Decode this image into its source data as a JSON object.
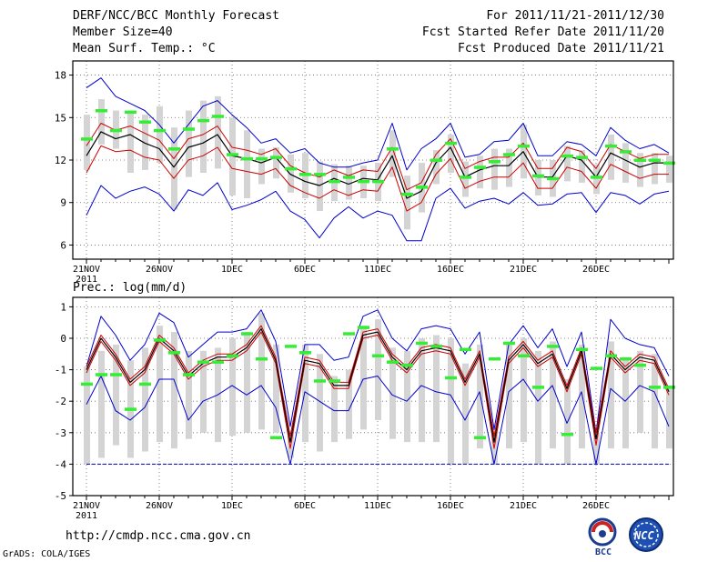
{
  "header": {
    "title": "DERF/NCC/BCC Monthly Forecast",
    "member_size": "Member Size=40",
    "variable": "Mean Surf. Temp.: °C",
    "period": "For 2011/11/21-2011/12/30",
    "started": "Fcst Started Refer Date 2011/11/20",
    "produced": "Fcst Produced Date 2011/11/21"
  },
  "footer": {
    "url": "http://cmdp.ncc.cma.gov.cn",
    "credit": "GrADS: COLA/IGES",
    "logo_bcc": "BCC",
    "logo_ncc": "NCC"
  },
  "colors": {
    "blue": "#0000cc",
    "red": "#cc0000",
    "black": "#000000",
    "green": "#33ee33",
    "box": "#d4d4d4",
    "grid": "#666666"
  },
  "chart_data": [
    {
      "type": "line",
      "title": "Mean Surf. Temp.: °C",
      "ylim": [
        5,
        19
      ],
      "yticks": [
        6,
        9,
        12,
        15,
        18
      ],
      "x_start_day": 0,
      "x_end_day": 40,
      "xticks": [
        {
          "day": 0,
          "label": "21NOV",
          "sub": "2011"
        },
        {
          "day": 5,
          "label": "26NOV"
        },
        {
          "day": 10,
          "label": "1DEC"
        },
        {
          "day": 15,
          "label": "6DEC"
        },
        {
          "day": 20,
          "label": "11DEC"
        },
        {
          "day": 25,
          "label": "16DEC"
        },
        {
          "day": 30,
          "label": "21DEC"
        },
        {
          "day": 35,
          "label": "26DEC"
        }
      ],
      "max": [
        17.1,
        17.8,
        16.5,
        16.0,
        15.5,
        14.5,
        13.2,
        14.5,
        15.8,
        16.2,
        15.2,
        14.3,
        13.2,
        13.5,
        12.5,
        12.8,
        11.8,
        11.5,
        11.5,
        11.8,
        12.0,
        14.6,
        11.3,
        12.8,
        13.5,
        14.6,
        12.2,
        12.4,
        13.3,
        13.4,
        14.6,
        12.3,
        12.3,
        13.3,
        13.1,
        12.3,
        14.3,
        13.4,
        12.8,
        13.1,
        12.5
      ],
      "min": [
        8.1,
        10.2,
        9.3,
        9.8,
        10.1,
        9.6,
        8.4,
        9.9,
        9.5,
        10.4,
        8.5,
        8.8,
        9.2,
        9.8,
        8.4,
        7.8,
        6.5,
        7.9,
        8.7,
        7.9,
        8.4,
        8.1,
        6.3,
        6.3,
        9.3,
        10.0,
        8.6,
        9.1,
        9.3,
        8.9,
        9.7,
        8.8,
        8.9,
        9.6,
        9.7,
        8.3,
        9.7,
        9.5,
        8.9,
        9.6,
        9.8
      ],
      "mean": [
        12.3,
        14.0,
        13.5,
        13.8,
        13.2,
        12.8,
        11.5,
        12.9,
        13.2,
        13.8,
        12.3,
        12.1,
        11.8,
        12.2,
        11.0,
        10.5,
        10.2,
        10.7,
        10.3,
        10.7,
        10.6,
        12.3,
        9.3,
        9.8,
        11.8,
        12.9,
        10.8,
        11.3,
        11.6,
        11.6,
        12.6,
        10.8,
        10.8,
        12.3,
        12.0,
        10.8,
        12.5,
        12.0,
        11.5,
        11.8,
        11.8
      ],
      "upper_red": [
        13.0,
        14.6,
        14.1,
        14.4,
        13.9,
        13.4,
        12.1,
        13.5,
        13.8,
        14.4,
        12.9,
        12.7,
        12.4,
        12.8,
        11.6,
        11.1,
        10.8,
        11.3,
        10.9,
        11.3,
        11.2,
        12.9,
        9.9,
        10.4,
        12.4,
        13.5,
        11.4,
        11.9,
        12.2,
        12.2,
        13.2,
        11.4,
        11.4,
        12.9,
        12.6,
        11.4,
        13.1,
        12.6,
        12.1,
        12.4,
        12.4
      ],
      "lower_red": [
        11.1,
        13.0,
        12.6,
        12.7,
        12.2,
        12.0,
        10.7,
        12.0,
        12.3,
        12.9,
        11.4,
        11.2,
        11.0,
        11.4,
        10.2,
        9.7,
        9.3,
        9.9,
        9.5,
        9.9,
        9.8,
        11.5,
        8.4,
        9.0,
        11.0,
        12.1,
        10.0,
        10.5,
        10.8,
        10.8,
        11.8,
        10.0,
        10.0,
        11.5,
        11.2,
        10.0,
        11.7,
        11.2,
        10.7,
        11.0,
        11.0
      ],
      "box_high": [
        15.2,
        16.3,
        15.5,
        15.5,
        15.2,
        15.8,
        14.3,
        15.5,
        16.2,
        16.5,
        15.0,
        14.1,
        12.8,
        12.9,
        12.4,
        12.5,
        11.9,
        11.7,
        11.6,
        11.6,
        11.8,
        14.1,
        10.9,
        11.8,
        12.7,
        13.8,
        11.9,
        12.3,
        12.8,
        12.8,
        14.5,
        12.0,
        12.0,
        13.0,
        12.7,
        11.7,
        13.8,
        13.2,
        12.5,
        12.5,
        12.3
      ],
      "box_low": [
        11.3,
        13.1,
        12.8,
        11.1,
        11.3,
        11.8,
        8.5,
        10.8,
        11.1,
        11.4,
        9.5,
        9.3,
        10.3,
        10.7,
        9.7,
        9.3,
        8.4,
        9.1,
        9.2,
        9.3,
        9.1,
        10.8,
        7.1,
        8.3,
        10.3,
        11.1,
        9.4,
        10.0,
        9.9,
        10.1,
        10.7,
        9.5,
        9.4,
        10.5,
        10.4,
        9.6,
        10.6,
        10.4,
        10.1,
        10.3,
        10.4
      ],
      "green_obs": [
        13.5,
        15.5,
        14.1,
        15.4,
        14.7,
        14.1,
        12.8,
        14.2,
        14.8,
        15.1,
        12.4,
        12.1,
        12.1,
        12.2,
        11.4,
        11.0,
        11.0,
        10.5,
        10.8,
        10.5,
        10.5,
        12.8,
        9.6,
        10.1,
        12.0,
        13.2,
        10.8,
        11.5,
        11.9,
        12.4,
        13.0,
        10.9,
        10.7,
        12.3,
        12.2,
        10.8,
        13.0,
        12.6,
        12.0,
        12.0,
        11.8
      ]
    },
    {
      "type": "line",
      "title": "Prec.: log(mm/d)",
      "ylim": [
        -5,
        1.3
      ],
      "yticks": [
        -5,
        -4,
        -3,
        -2,
        -1,
        0,
        1
      ],
      "x_start_day": 0,
      "x_end_day": 40,
      "xticks": [
        {
          "day": 0,
          "label": "21NOV",
          "sub": "2011"
        },
        {
          "day": 5,
          "label": "26NOV"
        },
        {
          "day": 10,
          "label": "1DEC"
        },
        {
          "day": 15,
          "label": "6DEC"
        },
        {
          "day": 20,
          "label": "11DEC"
        },
        {
          "day": 25,
          "label": "16DEC"
        },
        {
          "day": 30,
          "label": "21DEC"
        },
        {
          "day": 35,
          "label": "26DEC"
        }
      ],
      "baseline": -4,
      "max": [
        -0.9,
        0.7,
        0.1,
        -0.7,
        -0.2,
        0.8,
        0.5,
        -0.6,
        -0.2,
        0.2,
        0.2,
        0.3,
        0.9,
        -0.1,
        -2.8,
        -0.2,
        -0.2,
        -0.7,
        -0.6,
        0.7,
        0.9,
        0.0,
        -0.4,
        0.3,
        0.4,
        0.3,
        -0.5,
        0.2,
        -2.9,
        -0.2,
        0.4,
        -0.3,
        0.3,
        -0.9,
        0.2,
        -3.0,
        0.6,
        0.0,
        -0.2,
        -0.3,
        -1.2
      ],
      "min": [
        -2.1,
        -1.2,
        -2.3,
        -2.6,
        -2.2,
        -1.3,
        -1.3,
        -2.6,
        -2.0,
        -1.8,
        -1.5,
        -1.8,
        -1.5,
        -2.2,
        -4.0,
        -1.7,
        -2.0,
        -2.3,
        -2.3,
        -1.3,
        -1.2,
        -1.8,
        -2.0,
        -1.5,
        -1.7,
        -1.8,
        -2.6,
        -1.7,
        -4.0,
        -1.7,
        -1.3,
        -2.0,
        -1.5,
        -2.7,
        -1.7,
        -4.0,
        -1.6,
        -2.0,
        -1.5,
        -1.7,
        -2.8
      ],
      "mean": [
        -1.0,
        0.0,
        -0.6,
        -1.4,
        -1.0,
        0.0,
        -0.4,
        -1.2,
        -0.8,
        -0.6,
        -0.6,
        -0.3,
        0.3,
        -0.7,
        -3.3,
        -0.7,
        -0.8,
        -1.5,
        -1.5,
        0.1,
        0.2,
        -0.6,
        -1.0,
        -0.4,
        -0.3,
        -0.4,
        -1.4,
        -0.5,
        -3.3,
        -0.7,
        -0.2,
        -0.8,
        -0.5,
        -1.6,
        -0.4,
        -3.2,
        -0.5,
        -1.0,
        -0.6,
        -0.7,
        -1.7
      ],
      "upper_red": [
        -0.9,
        0.1,
        -0.5,
        -1.3,
        -0.9,
        0.1,
        -0.3,
        -1.1,
        -0.7,
        -0.5,
        -0.5,
        -0.2,
        0.4,
        -0.6,
        -3.1,
        -0.6,
        -0.7,
        -1.4,
        -1.4,
        0.2,
        0.3,
        -0.5,
        -0.9,
        -0.3,
        -0.2,
        -0.3,
        -1.3,
        -0.4,
        -3.1,
        -0.6,
        -0.1,
        -0.7,
        -0.4,
        -1.5,
        -0.3,
        -3.0,
        -0.4,
        -0.9,
        -0.5,
        -0.6,
        -1.6
      ],
      "lower_red": [
        -1.1,
        -0.1,
        -0.7,
        -1.5,
        -1.1,
        -0.1,
        -0.5,
        -1.3,
        -0.9,
        -0.7,
        -0.7,
        -0.4,
        0.2,
        -0.8,
        -3.5,
        -0.8,
        -0.9,
        -1.6,
        -1.6,
        0.0,
        0.1,
        -0.7,
        -1.1,
        -0.5,
        -0.4,
        -0.5,
        -1.5,
        -0.6,
        -3.5,
        -0.8,
        -0.3,
        -0.9,
        -0.6,
        -1.7,
        -0.5,
        -3.4,
        -0.6,
        -1.1,
        -0.7,
        -0.8,
        -1.8
      ],
      "box_high": [
        -0.9,
        -0.4,
        -0.2,
        -0.7,
        -0.3,
        0.4,
        0.2,
        -0.4,
        -0.4,
        -0.3,
        0.0,
        0.2,
        0.8,
        -0.2,
        -3.0,
        -0.2,
        -0.5,
        -1.2,
        -1.0,
        0.4,
        0.6,
        -0.3,
        -0.4,
        0.0,
        0.1,
        0.0,
        -0.8,
        -0.2,
        -3.0,
        -0.2,
        0.0,
        -0.4,
        -0.1,
        -1.3,
        -0.2,
        -3.0,
        -0.1,
        -0.6,
        -0.4,
        -0.5,
        -1.5
      ],
      "box_low": [
        -4.0,
        -3.8,
        -3.4,
        -3.8,
        -3.6,
        -3.3,
        -3.5,
        -3.2,
        -3.0,
        -3.3,
        -3.1,
        -3.0,
        -2.9,
        -3.0,
        -3.8,
        -3.3,
        -3.6,
        -3.3,
        -3.2,
        -2.9,
        -2.6,
        -3.2,
        -3.3,
        -3.3,
        -3.3,
        -4.0,
        -4.0,
        -3.5,
        -4.0,
        -3.5,
        -3.3,
        -4.0,
        -3.5,
        -4.0,
        -3.5,
        -4.0,
        -3.5,
        -3.5,
        -3.0,
        -3.5,
        -3.5
      ],
      "green_obs": [
        -1.45,
        -1.15,
        -1.15,
        -2.25,
        -1.45,
        -0.05,
        -0.45,
        -1.15,
        -0.75,
        -0.75,
        -0.55,
        0.15,
        -0.65,
        -3.15,
        -0.25,
        -0.45,
        -1.35,
        -1.35,
        0.15,
        0.35,
        -0.55,
        -0.75,
        -0.85,
        -0.15,
        -0.25,
        -1.25,
        -0.35,
        -3.15,
        -0.65,
        -0.15,
        -0.55,
        -1.55,
        -0.25,
        -3.05,
        -0.35,
        -0.95,
        -0.55,
        -0.65,
        -0.85,
        -1.55,
        -1.55
      ]
    }
  ]
}
